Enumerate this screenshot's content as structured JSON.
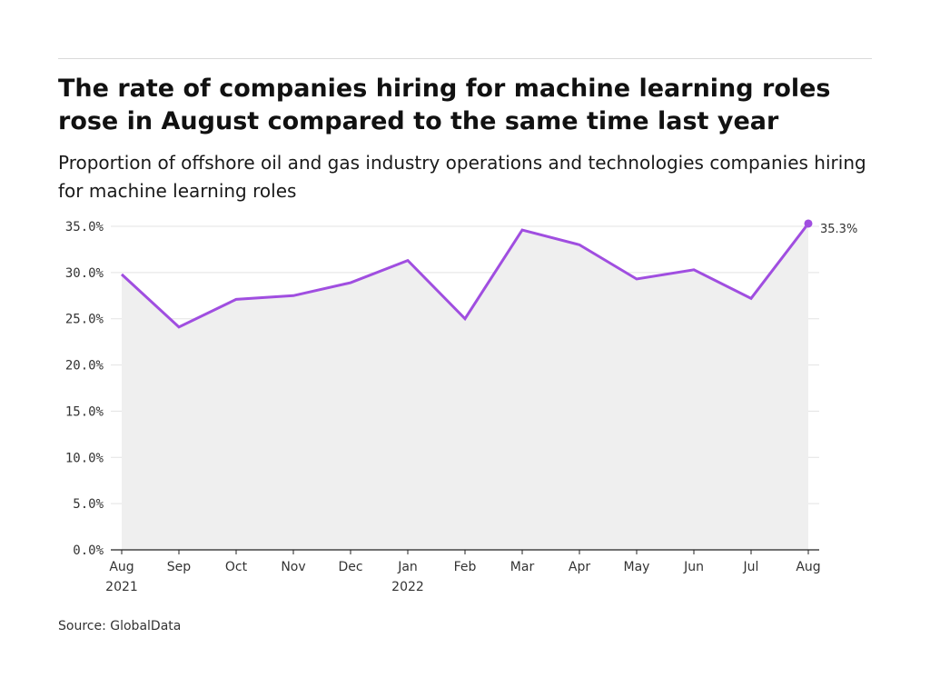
{
  "title": "The rate of companies hiring for machine learning roles rose in August compared to the same time last year",
  "subtitle": "Proportion of offshore oil and gas industry operations and technologies companies hiring for machine learning roles",
  "source": "Source: GlobalData",
  "colors": {
    "line": "#a04ee0",
    "area": "#efefef",
    "grid": "#e3e3e3",
    "axis": "#222222"
  },
  "chart_data": {
    "type": "area",
    "title": "The rate of companies hiring for machine learning roles rose in August compared to the same time last year",
    "subtitle": "Proportion of offshore oil and gas industry operations and technologies companies hiring for machine learning roles",
    "xlabel": "",
    "ylabel": "",
    "categories": [
      [
        "Aug",
        "2021"
      ],
      [
        "Sep",
        ""
      ],
      [
        "Oct",
        ""
      ],
      [
        "Nov",
        ""
      ],
      [
        "Dec",
        ""
      ],
      [
        "Jan",
        "2022"
      ],
      [
        "Feb",
        ""
      ],
      [
        "Mar",
        ""
      ],
      [
        "Apr",
        ""
      ],
      [
        "May",
        ""
      ],
      [
        "Jun",
        ""
      ],
      [
        "Jul",
        ""
      ],
      [
        "Aug",
        ""
      ]
    ],
    "series": [
      {
        "name": "Companies hiring for machine learning roles",
        "values": [
          29.8,
          24.1,
          27.1,
          27.5,
          28.9,
          31.3,
          25.0,
          34.6,
          33.0,
          29.3,
          30.3,
          27.2,
          35.3
        ]
      }
    ],
    "ylim": [
      0,
      35
    ],
    "yticks": [
      0,
      5,
      10,
      15,
      20,
      25,
      30,
      35
    ],
    "ytick_labels": [
      "0.0%",
      "5.0%",
      "10.0%",
      "15.0%",
      "20.0%",
      "25.0%",
      "30.0%",
      "35.0%"
    ],
    "grid": true,
    "end_label": "35.3%"
  }
}
